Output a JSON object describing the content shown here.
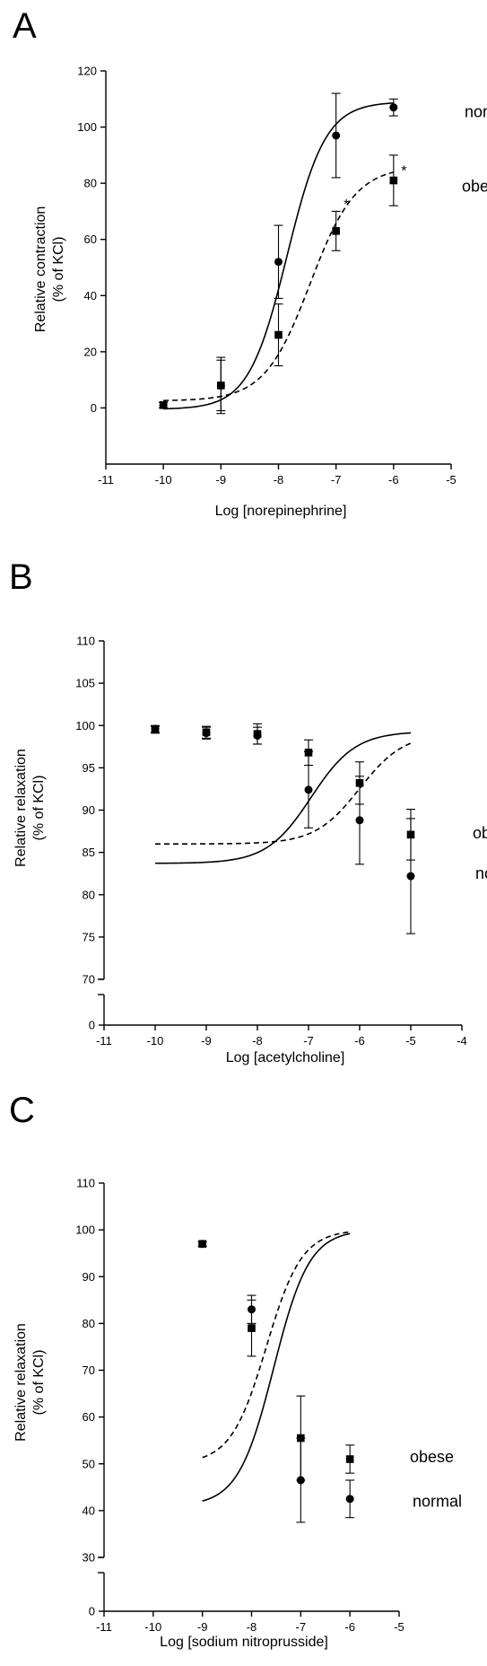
{
  "chart_data": [
    {
      "type": "scatter",
      "panel": "A",
      "xlabel": "Log [norepinephrine]",
      "ylabel": [
        "Relative contraction",
        "(% of KCl)"
      ],
      "xlim": [
        -11,
        -5
      ],
      "ylim": [
        -20,
        120
      ],
      "xticks": [
        -11,
        -10,
        -9,
        -8,
        -7,
        -6,
        -5
      ],
      "yticks": [
        0,
        20,
        40,
        60,
        80,
        100,
        120
      ],
      "ybreak": null,
      "series": [
        {
          "name": "normal",
          "line": "solid",
          "marker": "circle",
          "x": [
            -10,
            -9,
            -8,
            -7,
            -6
          ],
          "y": [
            1,
            8,
            52,
            97,
            107
          ],
          "err": [
            1,
            10,
            13,
            15,
            3
          ],
          "fit": {
            "bottom": -0.5,
            "top": 109,
            "logec50": -7.85,
            "hill": 1.3
          }
        },
        {
          "name": "obese",
          "line": "dashed",
          "marker": "square",
          "x": [
            -10,
            -9,
            -8,
            -7,
            -6
          ],
          "y": [
            1,
            8,
            26,
            63,
            81
          ],
          "err": [
            1,
            9,
            11,
            7,
            9
          ],
          "fit": {
            "bottom": 2.5,
            "top": 86,
            "logec50": -7.45,
            "hill": 1.1
          }
        }
      ],
      "annotations": [
        {
          "text": "*",
          "x": -6.82,
          "y": 74
        },
        {
          "text": "*",
          "x": -5.82,
          "y": 86
        }
      ]
    },
    {
      "type": "scatter",
      "panel": "B",
      "xlabel": "Log [acetylcholine]",
      "ylabel": [
        "Relative relaxation",
        "(% of KCl)"
      ],
      "xlim": [
        -11,
        -4
      ],
      "ylim": [
        0,
        110
      ],
      "xticks": [
        -11,
        -10,
        -9,
        -8,
        -7,
        -6,
        -5,
        -4
      ],
      "yticks": [
        70,
        75,
        80,
        85,
        90,
        95,
        100,
        105,
        110
      ],
      "ybreak": {
        "low": 0,
        "high": 70
      },
      "series": [
        {
          "name": "normal",
          "line": "solid",
          "marker": "circle",
          "x": [
            -10,
            -9,
            -8,
            -7,
            -6,
            -5
          ],
          "y": [
            99.6,
            99.1,
            98.8,
            92.4,
            88.8,
            82.2
          ],
          "err": [
            0.4,
            0.7,
            1.0,
            4.5,
            5.2,
            6.8
          ],
          "fit": {
            "bottom": 83.7,
            "top": 99.3,
            "logec50": -6.95,
            "hill": 1.0
          }
        },
        {
          "name": "obese",
          "line": "dashed",
          "marker": "square",
          "x": [
            -10,
            -9,
            -8,
            -7,
            -6,
            -5
          ],
          "y": [
            99.5,
            99.2,
            99.0,
            96.8,
            93.2,
            87.1
          ],
          "err": [
            0.4,
            0.7,
            1.2,
            1.5,
            2.5,
            3.0
          ],
          "fit": {
            "bottom": 86.0,
            "top": 99.1,
            "logec50": -6.0,
            "hill": 1.0
          }
        }
      ],
      "annotations": []
    },
    {
      "type": "scatter",
      "panel": "C",
      "xlabel": "Log [sodium nitroprusside]",
      "ylabel": [
        "Relative relaxation",
        "(% of KCl)"
      ],
      "xlim": [
        -11,
        -5
      ],
      "ylim": [
        0,
        110
      ],
      "xticks": [
        -11,
        -10,
        -9,
        -8,
        -7,
        -6,
        -5
      ],
      "yticks": [
        30,
        40,
        50,
        60,
        70,
        80,
        90,
        100,
        110
      ],
      "ybreak": {
        "low": 0,
        "high": 30
      },
      "series": [
        {
          "name": "normal",
          "line": "solid",
          "marker": "circle",
          "x": [
            -9,
            -8,
            -7,
            -6
          ],
          "y": [
            97.0,
            83.0,
            46.5,
            42.5
          ],
          "err": [
            0.5,
            3.0,
            9.0,
            4.0
          ],
          "fit": {
            "bottom": 41.0,
            "top": 100.0,
            "logec50": -7.55,
            "hill": 1.2
          }
        },
        {
          "name": "obese",
          "line": "dashed",
          "marker": "square",
          "x": [
            -9,
            -8,
            -7,
            -6
          ],
          "y": [
            97.0,
            79.0,
            55.5,
            51.0
          ],
          "err": [
            0.5,
            6.0,
            9.0,
            3.0
          ],
          "fit": {
            "bottom": 50.0,
            "top": 100.0,
            "logec50": -7.7,
            "hill": 1.2
          }
        }
      ],
      "annotations": []
    }
  ]
}
